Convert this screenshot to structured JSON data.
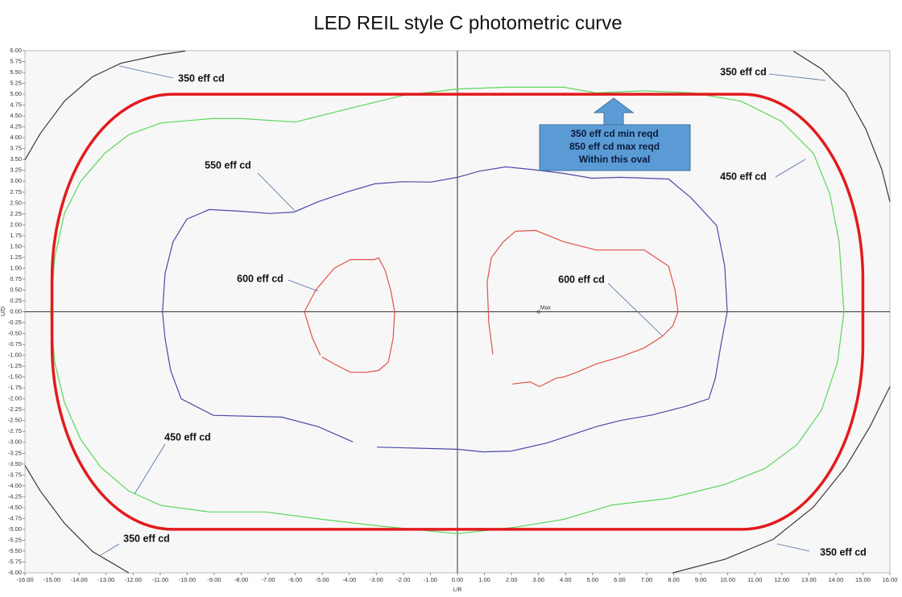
{
  "chart_data": {
    "type": "contour",
    "title": "LED REIL style C photometric curve",
    "xlabel": "L/R",
    "ylabel": "U/D",
    "xlim": [
      -16,
      16
    ],
    "ylim": [
      -6,
      6
    ],
    "xticks": [
      {
        "value": -16,
        "label": "-16.00"
      },
      {
        "value": -15,
        "label": "-15.00"
      },
      {
        "value": -14,
        "label": "-14.00"
      },
      {
        "value": -13,
        "label": "-13.00"
      },
      {
        "value": -12,
        "label": "-12.00"
      },
      {
        "value": -11,
        "label": "-11.00"
      },
      {
        "value": -10,
        "label": "-10.00"
      },
      {
        "value": -9,
        "label": "-9.00"
      },
      {
        "value": -8,
        "label": "-8.00"
      },
      {
        "value": -7,
        "label": "-7.00"
      },
      {
        "value": -6,
        "label": "-6.00"
      },
      {
        "value": -5,
        "label": "-5.00"
      },
      {
        "value": -4,
        "label": "-4.00"
      },
      {
        "value": -3,
        "label": "-3.00"
      },
      {
        "value": -2,
        "label": "-2.00"
      },
      {
        "value": -1,
        "label": "-1.00"
      },
      {
        "value": 0,
        "label": "0.00"
      },
      {
        "value": 1,
        "label": "1.00"
      },
      {
        "value": 2,
        "label": "2.00"
      },
      {
        "value": 3,
        "label": "3.00"
      },
      {
        "value": 4,
        "label": "4.00"
      },
      {
        "value": 5,
        "label": "5.00"
      },
      {
        "value": 6,
        "label": "6.00"
      },
      {
        "value": 7,
        "label": "7.00"
      },
      {
        "value": 8,
        "label": "8.00"
      },
      {
        "value": 9,
        "label": "9.00"
      },
      {
        "value": 10,
        "label": "10.00"
      },
      {
        "value": 11,
        "label": "11.00"
      },
      {
        "value": 12,
        "label": "12.00"
      },
      {
        "value": 13,
        "label": "13.00"
      },
      {
        "value": 14,
        "label": "14.00"
      },
      {
        "value": 15,
        "label": "15.00"
      },
      {
        "value": 16,
        "label": "16.00"
      }
    ],
    "yticks": [
      {
        "value": -6,
        "label": "-6.00"
      },
      {
        "value": -5.75,
        "label": "-5.75"
      },
      {
        "value": -5.5,
        "label": "-5.50"
      },
      {
        "value": -5.25,
        "label": "-5.25"
      },
      {
        "value": -5,
        "label": "-5.00"
      },
      {
        "value": -4.75,
        "label": "-4.75"
      },
      {
        "value": -4.5,
        "label": "-4.50"
      },
      {
        "value": -4.25,
        "label": "-4.25"
      },
      {
        "value": -4,
        "label": "-4.00"
      },
      {
        "value": -3.75,
        "label": "-3.75"
      },
      {
        "value": -3.5,
        "label": "-3.50"
      },
      {
        "value": -3.25,
        "label": "-3.25"
      },
      {
        "value": -3,
        "label": "-3.00"
      },
      {
        "value": -2.75,
        "label": "-2.75"
      },
      {
        "value": -2.5,
        "label": "-2.50"
      },
      {
        "value": -2.25,
        "label": "-2.25"
      },
      {
        "value": -2,
        "label": "-2.00"
      },
      {
        "value": -1.75,
        "label": "-1.75"
      },
      {
        "value": -1.5,
        "label": "-1.50"
      },
      {
        "value": -1.25,
        "label": "-1.25"
      },
      {
        "value": -1,
        "label": "-1.00"
      },
      {
        "value": -0.75,
        "label": "-0.75"
      },
      {
        "value": -0.5,
        "label": "-0.50"
      },
      {
        "value": -0.25,
        "label": "-0.25"
      },
      {
        "value": 0,
        "label": "0.00"
      },
      {
        "value": 0.25,
        "label": "0.25"
      },
      {
        "value": 0.5,
        "label": "0.50"
      },
      {
        "value": 0.75,
        "label": "0.75"
      },
      {
        "value": 1,
        "label": "1.00"
      },
      {
        "value": 1.25,
        "label": "1.25"
      },
      {
        "value": 1.5,
        "label": "1.50"
      },
      {
        "value": 1.75,
        "label": "1.75"
      },
      {
        "value": 2,
        "label": "2.00"
      },
      {
        "value": 2.25,
        "label": "2.25"
      },
      {
        "value": 2.5,
        "label": "2.50"
      },
      {
        "value": 2.75,
        "label": "2.75"
      },
      {
        "value": 3,
        "label": "3.00"
      },
      {
        "value": 3.25,
        "label": "3.25"
      },
      {
        "value": 3.5,
        "label": "3.50"
      },
      {
        "value": 3.75,
        "label": "3.75"
      },
      {
        "value": 4,
        "label": "4.00"
      },
      {
        "value": 4.25,
        "label": "4.25"
      },
      {
        "value": 4.5,
        "label": "4.50"
      },
      {
        "value": 4.75,
        "label": "4.75"
      },
      {
        "value": 5,
        "label": "5.00"
      },
      {
        "value": 5.25,
        "label": "5.25"
      },
      {
        "value": 5.5,
        "label": "5.50"
      },
      {
        "value": 5.75,
        "label": "5.75"
      },
      {
        "value": 6,
        "label": "6.00"
      }
    ],
    "series": [
      {
        "color": "#3a3a3a",
        "x": [
          -16.0,
          -15.43,
          -14.54,
          -13.5,
          -12.46,
          -10.97,
          -10.07,
          null,
          12.43,
          13.47,
          14.36,
          15.11,
          15.7,
          16.0,
          null,
          -16.0,
          -15.43,
          -14.54,
          -13.5,
          -12.16,
          null,
          7.96,
          9.89,
          11.68,
          13.17,
          14.36,
          15.26,
          16.0
        ],
        "y": [
          3.49,
          4.1,
          4.84,
          5.4,
          5.71,
          5.91,
          5.99,
          null,
          5.99,
          5.58,
          5.03,
          4.2,
          3.27,
          2.53,
          null,
          -3.53,
          -4.12,
          -4.86,
          -5.51,
          -6.0,
          null,
          -6.0,
          -5.69,
          -5.23,
          -4.49,
          -3.57,
          -2.64,
          -1.72
        ]
      },
      {
        "color": "#5cd65c",
        "x": [
          -5.99,
          -7.99,
          -9.09,
          -10.97,
          -12.16,
          -13.05,
          -13.95,
          -14.54,
          -14.9,
          -15.05,
          -14.9,
          -14.54,
          -13.95,
          -13.2,
          -12.16,
          -10.97,
          -9.18,
          -7.09,
          -5.0,
          -2.92,
          0.0,
          2.15,
          3.93,
          5.72,
          7.81,
          9.89,
          11.38,
          12.57,
          13.47,
          14.06,
          14.3,
          14.12,
          13.77,
          13.17,
          11.98,
          10.49,
          8.7,
          6.91,
          5.13,
          3.93,
          1.85,
          0.0,
          -2.03,
          -3.81,
          -5.99
        ],
        "y": [
          4.36,
          4.44,
          4.44,
          4.34,
          4.07,
          3.64,
          2.99,
          2.26,
          1.24,
          0.0,
          -1.16,
          -2.08,
          -2.92,
          -3.57,
          -4.12,
          -4.45,
          -4.6,
          -4.6,
          -4.77,
          -4.92,
          -5.1,
          -4.95,
          -4.77,
          -4.44,
          -4.29,
          -3.97,
          -3.6,
          -3.05,
          -2.26,
          -1.16,
          0.0,
          1.61,
          2.72,
          3.64,
          4.38,
          4.84,
          5.03,
          5.08,
          5.03,
          5.16,
          5.16,
          5.12,
          4.97,
          4.7,
          4.36
        ]
      },
      {
        "color": "#4a4aa8",
        "x": [
          -2.98,
          0.0,
          0.95,
          2.0,
          3.34,
          5.13,
          6.02,
          7.21,
          8.4,
          9.3,
          9.54,
          9.74,
          9.98,
          9.89,
          9.59,
          8.64,
          7.81,
          6.02,
          4.98,
          3.93,
          2.74,
          1.79,
          0.8,
          0.0,
          -0.98,
          -2.03,
          -3.07,
          -4.11,
          -5.15,
          -6.05,
          -6.94,
          -7.99,
          -9.18,
          -10.01,
          -10.52,
          -10.82,
          -10.91,
          -10.82,
          -10.61,
          -10.22,
          -9.03,
          -6.5,
          -5.15,
          -3.87
        ],
        "y": [
          -3.11,
          -3.16,
          -3.22,
          -3.2,
          -3.01,
          -2.64,
          -2.5,
          -2.37,
          -2.18,
          -2.0,
          -1.53,
          -0.79,
          0.0,
          1.05,
          1.98,
          2.62,
          3.05,
          3.09,
          3.07,
          3.18,
          3.27,
          3.33,
          3.23,
          3.09,
          2.98,
          2.99,
          2.94,
          2.75,
          2.53,
          2.29,
          2.26,
          2.31,
          2.35,
          2.13,
          1.61,
          0.87,
          0.0,
          -0.61,
          -1.35,
          -2.0,
          -2.38,
          -2.42,
          -2.64,
          -2.99
        ]
      },
      {
        "color": "#e0534a",
        "x": [
          -5.07,
          -5.36,
          -5.66,
          -5.24,
          -4.56,
          -3.96,
          -3.07,
          -2.92,
          -2.68,
          -2.47,
          -2.32,
          -2.38,
          -2.56,
          -2.92,
          -3.37,
          -3.96,
          -4.56,
          -5.01,
          null,
          1.31,
          1.16,
          1.1,
          1.25,
          1.7,
          2.15,
          2.89,
          3.93,
          5.13,
          6.02,
          6.91,
          7.81,
          8.05,
          8.16,
          7.96,
          7.57,
          6.91,
          6.02,
          5.13,
          4.38,
          3.93,
          3.64,
          3.04,
          2.68,
          2.03
        ],
        "y": [
          -1.0,
          -0.61,
          0.0,
          0.5,
          1.0,
          1.2,
          1.2,
          1.24,
          0.96,
          0.5,
          0.0,
          -0.61,
          -1.16,
          -1.35,
          -1.39,
          -1.39,
          -1.2,
          -1.04,
          null,
          -0.98,
          -0.24,
          0.68,
          1.24,
          1.61,
          1.85,
          1.87,
          1.61,
          1.42,
          1.42,
          1.42,
          1.05,
          0.5,
          0.0,
          -0.33,
          -0.57,
          -0.83,
          -1.04,
          -1.2,
          -1.4,
          -1.5,
          -1.53,
          -1.72,
          -1.61,
          -1.66
        ]
      }
    ],
    "region": {
      "color": "#e31a1c",
      "x": [
        -15,
        15
      ],
      "y": [
        -5,
        5
      ]
    },
    "max_point": {
      "label": "Max",
      "x": 3.0,
      "y": 0.0
    },
    "callout": [
      "350 eff cd min reqd",
      "850 eff cd max reqd",
      "Within this oval"
    ],
    "annotations": [
      "350 eff cd",
      "350 eff cd",
      "450 eff cd",
      "550 eff cd",
      "600 eff cd",
      "600 eff cd",
      "450 eff cd",
      "350 eff cd",
      "350 eff cd"
    ]
  }
}
